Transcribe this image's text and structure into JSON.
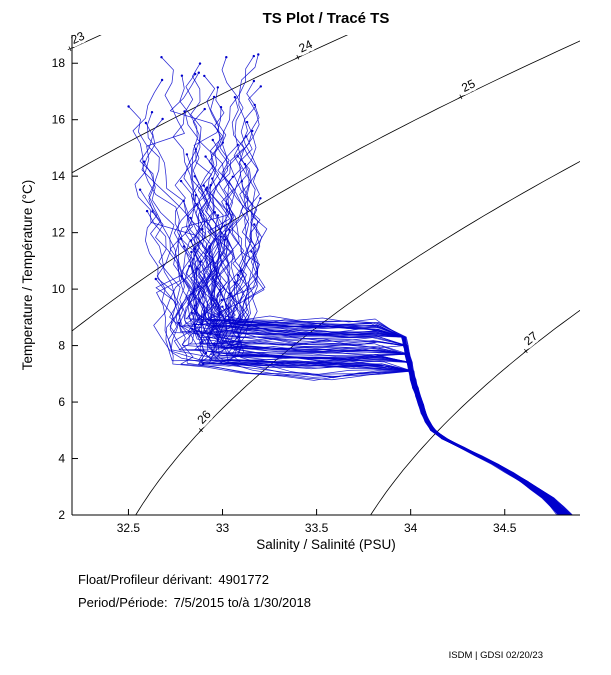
{
  "footer": {
    "float_label": "Float/Profileur dérivant:",
    "float_value": "4901772",
    "period_label": "Period/Période:",
    "period_value": "7/5/2015  to/à  1/30/2018",
    "credit": "ISDM | GDSI 02/20/23"
  },
  "chart_data": {
    "type": "line",
    "title": "TS Plot / Tracé TS",
    "xlabel": "Salinity / Salinité (PSU)",
    "ylabel": "Temperature / Température (°C)",
    "xlim": [
      32.2,
      34.9
    ],
    "ylim": [
      2,
      19
    ],
    "xticks": [
      32.5,
      33,
      33.5,
      34,
      34.5
    ],
    "xtick_labels": [
      "32.5",
      "33",
      "33.5",
      "34",
      "34.5"
    ],
    "yticks": [
      2,
      4,
      6,
      8,
      10,
      12,
      14,
      16,
      18
    ],
    "ytick_labels": [
      "2",
      "4",
      "6",
      "8",
      "10",
      "12",
      "14",
      "16",
      "18"
    ],
    "grid": false,
    "legend": "none",
    "series_color": "#0000CC",
    "contour_color": "#000000",
    "isopycnals": [
      {
        "value": 23,
        "label_t": 18.5
      },
      {
        "value": 24,
        "label_t": 18.2
      },
      {
        "value": 25,
        "label_t": 16.8
      },
      {
        "value": 26,
        "label_t": 5.0
      },
      {
        "value": 27,
        "label_t": 7.8
      }
    ],
    "base_profile_TS": [
      [
        2.0,
        34.82
      ],
      [
        2.6,
        34.73
      ],
      [
        3.2,
        34.6
      ],
      [
        3.8,
        34.45
      ],
      [
        4.3,
        34.3
      ],
      [
        4.7,
        34.18
      ],
      [
        5.0,
        34.12
      ],
      [
        5.4,
        34.08
      ],
      [
        6.0,
        34.05
      ],
      [
        6.6,
        34.02
      ],
      [
        7.2,
        34.0
      ],
      [
        7.8,
        33.98
      ],
      [
        8.45,
        33.96
      ]
    ],
    "profiles": {
      "count": 90,
      "seed": 4901772,
      "turn_t_range": [
        7.15,
        8.85
      ],
      "surface_t_max": 18.65,
      "traverse_left_s_range": [
        32.72,
        33.1
      ],
      "surface_s_band": [
        32.55,
        33.2
      ],
      "surface_s_extremes": [
        32.38,
        33.48
      ]
    }
  }
}
